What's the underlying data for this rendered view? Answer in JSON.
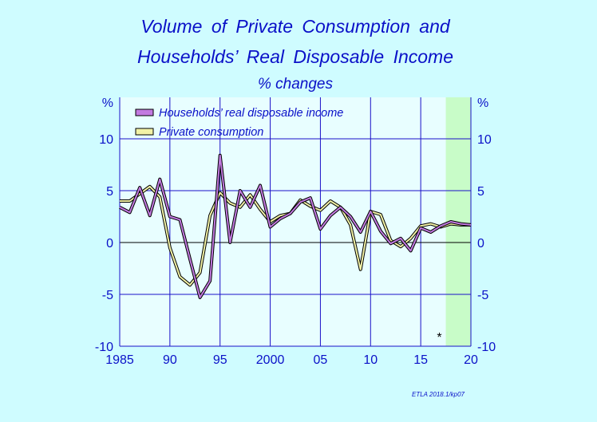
{
  "title_line1": "Volume of Private Consumption and",
  "title_line2": "Households’ Real Disposable Income",
  "subtitle": "% changes",
  "credit": "ETLA 2018.1/kp07",
  "colors": {
    "background": "#cffcff",
    "plot_bg": "#e8feff",
    "forecast_bg": "#c8fcc8",
    "axis_text": "#0a10c8",
    "grid": "#1a10c8",
    "income": "#c27ae0",
    "consumption": "#f2f2a6"
  },
  "chart_data": {
    "type": "line",
    "title": "Volume of Private Consumption and Households’ Real Disposable Income",
    "subtitle": "% changes",
    "xlim": [
      1985,
      2020
    ],
    "ylim": [
      -10,
      14
    ],
    "y_unit_left": "%",
    "y_unit_right": "%",
    "x_ticks": [
      {
        "value": 1985,
        "label": "1985"
      },
      {
        "value": 1990,
        "label": "90"
      },
      {
        "value": 1995,
        "label": "95"
      },
      {
        "value": 2000,
        "label": "2000"
      },
      {
        "value": 2005,
        "label": "05"
      },
      {
        "value": 2010,
        "label": "10"
      },
      {
        "value": 2015,
        "label": "15"
      },
      {
        "value": 2020,
        "label": "20"
      }
    ],
    "y_ticks": [
      {
        "value": 10,
        "label": "10"
      },
      {
        "value": 5,
        "label": "5"
      },
      {
        "value": 0,
        "label": "0"
      },
      {
        "value": -5,
        "label": "-5"
      },
      {
        "value": -10,
        "label": "-10"
      }
    ],
    "grid": true,
    "forecast_start": 2017.5,
    "forecast_marker": "*",
    "legend_position": "top-left",
    "x": [
      1985,
      1986,
      1987,
      1988,
      1989,
      1990,
      1991,
      1992,
      1993,
      1994,
      1995,
      1996,
      1997,
      1998,
      1999,
      2000,
      2001,
      2002,
      2003,
      2004,
      2005,
      2006,
      2007,
      2008,
      2009,
      2010,
      2011,
      2012,
      2013,
      2014,
      2015,
      2016,
      2017,
      2018,
      2019,
      2020
    ],
    "series": [
      {
        "name": "Households’ real disposable income",
        "color": "#c27ae0",
        "values": [
          3.4,
          2.9,
          5.3,
          2.6,
          6.1,
          2.5,
          2.2,
          -1.6,
          -5.3,
          -3.7,
          8.4,
          0.0,
          5.0,
          3.4,
          5.5,
          1.5,
          2.3,
          2.8,
          3.9,
          4.3,
          1.3,
          2.6,
          3.4,
          2.5,
          1.0,
          3.0,
          1.1,
          -0.1,
          0.4,
          -0.8,
          1.4,
          1.0,
          1.6,
          2.0,
          1.8,
          1.7
        ]
      },
      {
        "name": "Private consumption",
        "color": "#f2f2a6",
        "values": [
          4.0,
          4.0,
          4.7,
          5.4,
          4.4,
          -0.5,
          -3.3,
          -4.1,
          -2.9,
          2.6,
          4.8,
          3.8,
          3.4,
          4.6,
          3.2,
          2.0,
          2.6,
          2.8,
          4.1,
          3.5,
          3.1,
          4.0,
          3.4,
          1.7,
          -2.6,
          3.0,
          2.7,
          0.2,
          -0.4,
          0.4,
          1.6,
          1.8,
          1.5,
          1.8,
          1.7,
          1.7
        ]
      }
    ]
  }
}
